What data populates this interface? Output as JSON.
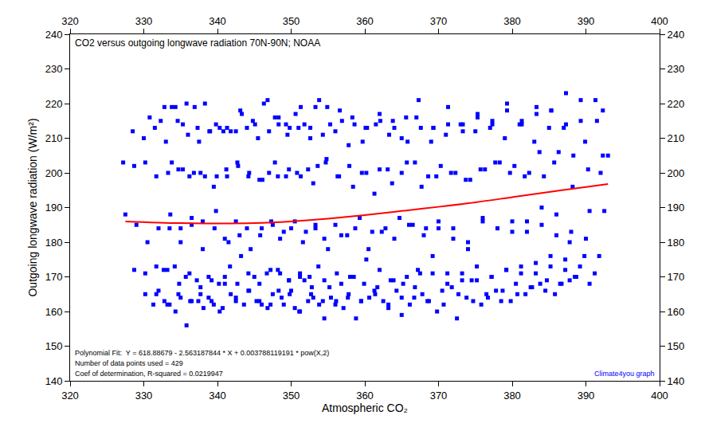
{
  "chart_data": {
    "type": "scatter",
    "title": "CO2 versus outgoing longwave radiation 70N-90N; NOAA",
    "x_label": "Atmospheric CO₂",
    "y_label": "Outgoing longwave radiation (W/m²)",
    "annotations": [
      "Polynomial Fit:  Y = 618.88679 - 2.563187844 * X + 0.003788119191 * pow(X,2)",
      "Number of data points used = 429",
      "Coef of determination, R-squared = 0.0219947"
    ],
    "source": "Climate4you graph",
    "source_color": "#0000ff",
    "xlim": [
      320,
      400
    ],
    "xticks": [
      320,
      330,
      340,
      350,
      360,
      370,
      380,
      390,
      400
    ],
    "ylim": [
      140,
      240
    ],
    "yticks": [
      140,
      150,
      160,
      170,
      180,
      190,
      200,
      210,
      220,
      230,
      240
    ],
    "grid": false,
    "series": [
      {
        "type": "scatter",
        "marker": "square",
        "color": "#0000ff",
        "x": [
          331.3,
          332.0,
          332.7,
          333.5,
          333.8,
          332.8,
          330.8,
          328.5,
          327.2,
          327.5,
          328.7,
          330.2,
          332.8,
          333.5,
          334.2,
          335.0,
          335.3,
          334.3,
          332.3,
          330.0,
          328.7,
          329.0,
          330.2,
          331.7,
          334.3,
          335.0,
          335.7,
          336.5,
          336.8,
          335.8,
          333.8,
          331.5,
          330.2,
          330.5,
          331.7,
          333.2,
          335.8,
          336.5,
          337.2,
          338.0,
          338.3,
          337.3,
          335.3,
          333.0,
          331.7,
          332.0,
          333.2,
          334.7,
          337.4,
          338.1,
          338.8,
          339.6,
          339.9,
          338.9,
          336.9,
          334.6,
          333.3,
          333.6,
          334.8,
          336.3,
          338.8,
          339.5,
          340.2,
          341.0,
          341.3,
          340.3,
          338.3,
          336.0,
          334.7,
          335.0,
          336.2,
          337.7,
          340.3,
          341.0,
          341.7,
          342.5,
          342.8,
          341.8,
          339.8,
          337.5,
          336.2,
          336.5,
          337.7,
          339.2,
          341.8,
          342.5,
          343.2,
          344.0,
          344.3,
          343.3,
          341.3,
          339.0,
          337.7,
          338.0,
          339.2,
          340.7,
          343.6,
          344.3,
          345.0,
          345.8,
          346.1,
          345.1,
          343.1,
          340.8,
          339.5,
          339.8,
          341.0,
          342.5,
          345.3,
          346.0,
          346.7,
          347.5,
          347.8,
          346.8,
          344.8,
          342.5,
          341.2,
          341.5,
          342.7,
          344.2,
          346.8,
          347.5,
          348.2,
          349.0,
          349.3,
          348.3,
          346.3,
          344.0,
          342.7,
          343.0,
          344.2,
          345.7,
          348.3,
          349.0,
          349.7,
          350.5,
          350.8,
          349.8,
          347.8,
          345.5,
          344.2,
          344.5,
          345.7,
          347.2,
          349.8,
          350.5,
          351.2,
          352.0,
          352.3,
          351.3,
          349.3,
          347.0,
          345.7,
          346.0,
          347.2,
          348.7,
          351.1,
          351.8,
          352.5,
          353.3,
          353.6,
          352.6,
          350.6,
          348.3,
          347.0,
          347.3,
          348.5,
          350.0,
          352.3,
          353.0,
          353.7,
          354.5,
          354.8,
          353.8,
          351.8,
          349.5,
          348.2,
          348.5,
          349.7,
          351.2,
          353.8,
          354.5,
          355.2,
          356.0,
          356.3,
          355.3,
          353.3,
          351.0,
          349.7,
          350.0,
          351.2,
          352.7,
          355.4,
          356.1,
          356.8,
          357.6,
          357.9,
          356.9,
          354.9,
          352.6,
          351.3,
          351.6,
          352.8,
          354.3,
          357.1,
          357.8,
          358.5,
          359.3,
          359.6,
          358.6,
          356.6,
          354.3,
          353.0,
          353.3,
          354.5,
          356.0,
          358.8,
          359.5,
          360.2,
          361.0,
          361.3,
          360.3,
          358.3,
          356.0,
          354.7,
          355.0,
          356.2,
          357.7,
          360.6,
          361.3,
          362.0,
          362.8,
          363.1,
          362.1,
          360.1,
          357.8,
          356.5,
          356.8,
          358.0,
          359.5,
          362.5,
          363.2,
          363.9,
          364.7,
          365.0,
          364.0,
          362.0,
          359.7,
          358.4,
          358.7,
          359.9,
          361.4,
          364.3,
          365.0,
          365.7,
          366.5,
          366.8,
          365.8,
          363.8,
          361.5,
          360.2,
          360.5,
          361.7,
          363.2,
          366.1,
          366.8,
          367.5,
          368.3,
          368.6,
          367.6,
          365.6,
          363.3,
          362.0,
          362.3,
          363.5,
          365.0,
          367.8,
          368.5,
          369.2,
          370.0,
          370.3,
          369.3,
          367.3,
          365.0,
          363.7,
          364.0,
          365.2,
          366.7,
          369.8,
          370.5,
          371.2,
          372.0,
          372.3,
          371.3,
          369.3,
          367.0,
          365.7,
          366.0,
          367.2,
          368.7,
          371.8,
          372.5,
          373.2,
          374.0,
          374.3,
          373.3,
          371.3,
          369.0,
          367.7,
          368.0,
          369.2,
          370.7,
          373.8,
          374.5,
          375.2,
          376.0,
          376.3,
          375.3,
          373.3,
          371.0,
          369.7,
          370.0,
          371.2,
          372.7,
          375.8,
          376.5,
          377.2,
          378.0,
          378.3,
          377.3,
          375.3,
          373.0,
          371.7,
          372.0,
          373.2,
          374.7,
          377.8,
          378.5,
          379.2,
          380.0,
          380.3,
          379.3,
          377.3,
          375.0,
          373.7,
          374.0,
          375.2,
          376.7,
          379.8,
          380.5,
          381.2,
          382.0,
          382.3,
          381.3,
          379.3,
          377.0,
          375.7,
          376.0,
          377.2,
          378.7,
          381.8,
          382.5,
          383.2,
          384.0,
          384.3,
          383.3,
          381.3,
          379.0,
          377.7,
          378.0,
          379.2,
          380.7,
          383.8,
          384.5,
          385.2,
          386.0,
          386.3,
          385.3,
          383.3,
          381.0,
          379.7,
          380.0,
          381.2,
          382.7,
          385.8,
          386.5,
          387.2,
          388.0,
          388.3,
          387.3,
          385.3,
          383.0,
          381.7,
          382.0,
          383.2,
          384.7,
          387.8,
          388.5,
          389.2,
          390.0,
          390.3,
          389.3,
          387.3,
          385.0,
          383.7,
          384.0,
          385.2,
          386.7,
          389.8,
          390.5,
          391.2,
          392.0,
          392.3,
          391.3,
          389.3,
          387.0,
          385.7,
          386.0,
          387.2,
          388.7,
          390.5,
          391.8,
          392.5,
          393.0,
          392.3,
          391.5,
          389.9,
          388.2,
          387.8
        ],
        "values": [
          162,
          166,
          172,
          184,
          203,
          219,
          216,
          212,
          203,
          188,
          172,
          165,
          163,
          162,
          173,
          184,
          201,
          219,
          215,
          210,
          202,
          185,
          171,
          165,
          160,
          164,
          170,
          187,
          200,
          220,
          219,
          213,
          203,
          180,
          173,
          162,
          156,
          163,
          169,
          186,
          199,
          213,
          214,
          209,
          199,
          184,
          172,
          165,
          163,
          161,
          170,
          184,
          199,
          212,
          219,
          215,
          200,
          188,
          168,
          163,
          164,
          162,
          168,
          181,
          199,
          213,
          220,
          211,
          201,
          180,
          171,
          165,
          160,
          168,
          173,
          186,
          202,
          212,
          214,
          209,
          199,
          185,
          167,
          163,
          165,
          163,
          176,
          184,
          200,
          217,
          213,
          212,
          200,
          178,
          169,
          161,
          162,
          166,
          170,
          182,
          198,
          214,
          218,
          212,
          196,
          189,
          170,
          164,
          163,
          162,
          171,
          185,
          203,
          221,
          215,
          212,
          201,
          180,
          168,
          166,
          161,
          165,
          172,
          183,
          199,
          214,
          220,
          213,
          203,
          182,
          171,
          163,
          166,
          162,
          169,
          186,
          200,
          213,
          216,
          210,
          199,
          178,
          168,
          162,
          165,
          161,
          171,
          183,
          201,
          219,
          214,
          212,
          198,
          184,
          172,
          164,
          160,
          169,
          170,
          184,
          202,
          213,
          217,
          216,
          200,
          186,
          171,
          166,
          163,
          164,
          173,
          181,
          204,
          221,
          214,
          211,
          199,
          181,
          169,
          160,
          162,
          158,
          167,
          185,
          199,
          214,
          219,
          213,
          201,
          184,
          170,
          165,
          164,
          163,
          168,
          182,
          202,
          215,
          219,
          210,
          199,
          180,
          167,
          163,
          161,
          165,
          170,
          187,
          200,
          214,
          218,
          211,
          197,
          185,
          169,
          162,
          158,
          163,
          175,
          183,
          194,
          213,
          216,
          212,
          203,
          178,
          171,
          164,
          164,
          166,
          172,
          184,
          201,
          215,
          213,
          208,
          199,
          182,
          170,
          163,
          163,
          161,
          169,
          187,
          200,
          213,
          217,
          209,
          196,
          184,
          168,
          165,
          166,
          159,
          170,
          185,
          203,
          209,
          215,
          214,
          200,
          178,
          167,
          162,
          162,
          167,
          171,
          184,
          199,
          213,
          216,
          211,
          201,
          183,
          169,
          164,
          165,
          163,
          176,
          186,
          202,
          213,
          221,
          210,
          197,
          181,
          168,
          164,
          160,
          166,
          171,
          184,
          200,
          214,
          213,
          216,
          203,
          185,
          172,
          163,
          167,
          158,
          169,
          178,
          198,
          212,
          219,
          209,
          196,
          182,
          171,
          162,
          164,
          169,
          173,
          187,
          201,
          216,
          214,
          211,
          199,
          184,
          168,
          165,
          162,
          165,
          170,
          184,
          203,
          215,
          217,
          214,
          200,
          181,
          171,
          163,
          166,
          163,
          172,
          186,
          202,
          218,
          214,
          212,
          198,
          180,
          169,
          164,
          163,
          168,
          171,
          183,
          200,
          215,
          220,
          213,
          201,
          186,
          170,
          166,
          165,
          167,
          174,
          185,
          199,
          219,
          214,
          210,
          203,
          184,
          172,
          165,
          168,
          166,
          173,
          188,
          206,
          218,
          217,
          214,
          200,
          183,
          173,
          167,
          165,
          168,
          172,
          183,
          205,
          223,
          218,
          209,
          199,
          186,
          171,
          169,
          169,
          170,
          173,
          181,
          201,
          221,
          214,
          213,
          206,
          190,
          176,
          168,
          176,
          189,
          171,
          200,
          205,
          221,
          215,
          213,
          203,
          182,
          175,
          170,
          168,
          176,
          189,
          205,
          218,
          215,
          209,
          196,
          180
        ]
      },
      {
        "type": "line",
        "line_style": "solid",
        "color": "#ff0000",
        "x": [
          327.5,
          335,
          340,
          345,
          350,
          355,
          360,
          365,
          370,
          375,
          380,
          385,
          390,
          393
        ],
        "values": [
          186.0,
          185.5,
          185.4,
          185.5,
          186.0,
          186.8,
          187.8,
          189.0,
          190.2,
          191.5,
          193.0,
          194.5,
          195.9,
          196.8
        ]
      }
    ]
  }
}
